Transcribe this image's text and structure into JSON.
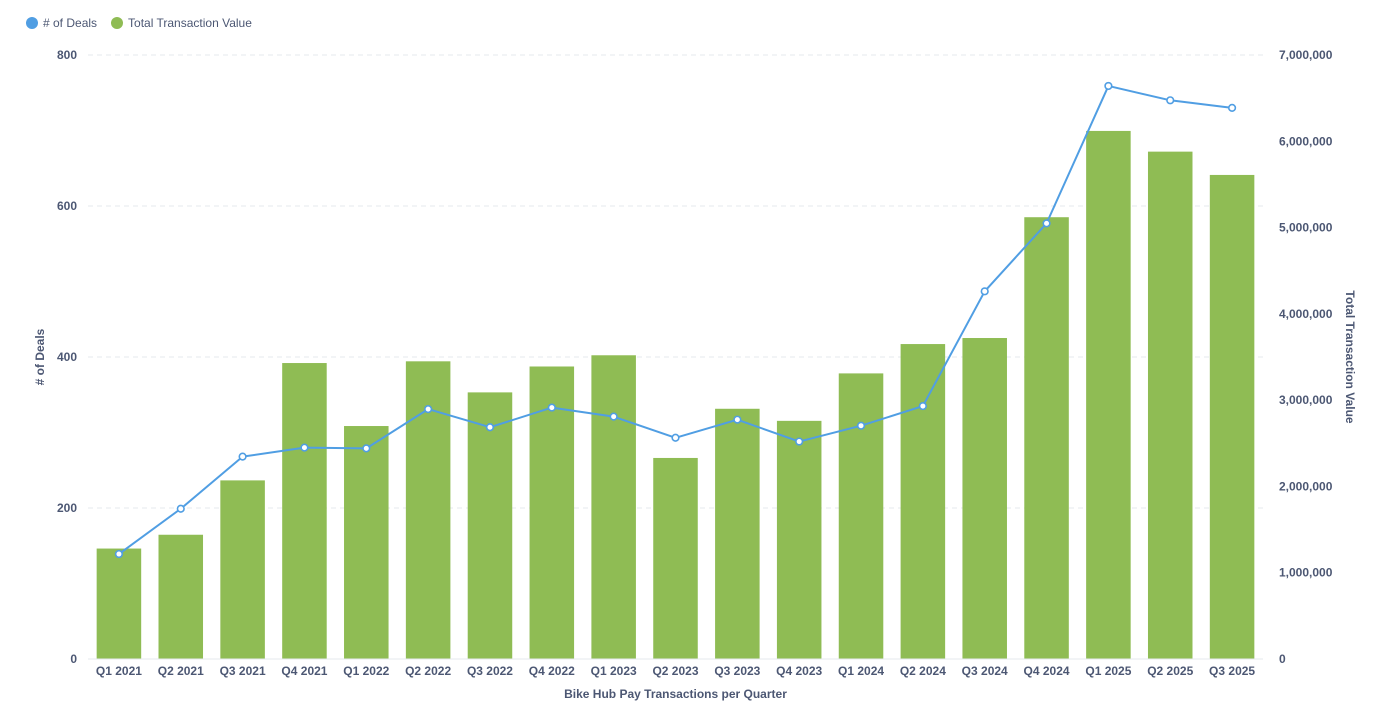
{
  "chart_data": {
    "type": "bar",
    "categories": [
      "Q1 2021",
      "Q2 2021",
      "Q3 2021",
      "Q4 2021",
      "Q1 2022",
      "Q2 2022",
      "Q3 2022",
      "Q4 2022",
      "Q1 2023",
      "Q2 2023",
      "Q3 2023",
      "Q4 2023",
      "Q1 2024",
      "Q2 2024",
      "Q3 2024",
      "Q4 2024",
      "Q1 2025",
      "Q2 2025",
      "Q3 2025"
    ],
    "series": [
      {
        "name": "Total Transaction Value",
        "type": "bar",
        "axis": "right",
        "color": "#8fbc54",
        "values": [
          1280000,
          1440000,
          2070000,
          3430000,
          2700000,
          3450000,
          3090000,
          3390000,
          3520000,
          2330000,
          2900000,
          2760000,
          3310000,
          3650000,
          3720000,
          5120000,
          6120000,
          5880000,
          5610000
        ]
      },
      {
        "name": "# of Deals",
        "type": "line",
        "axis": "left",
        "color": "#509ee3",
        "values": [
          139,
          199,
          268,
          280,
          279,
          331,
          307,
          333,
          321,
          293,
          317,
          288,
          309,
          335,
          487,
          577,
          759,
          740,
          730
        ]
      }
    ],
    "xlabel": "Bike Hub Pay Transactions per  Quarter",
    "ylabel_left": "# of Deals",
    "ylabel_right": "Total Transaction Value",
    "ylim_left": [
      0,
      800
    ],
    "ylim_right": [
      0,
      7000000
    ],
    "yticks_left": [
      "0",
      "200",
      "400",
      "600",
      "800"
    ],
    "yticks_right": [
      "0",
      "1,000,000",
      "2,000,000",
      "3,000,000",
      "4,000,000",
      "5,000,000",
      "6,000,000",
      "7,000,000"
    ],
    "grid": true,
    "legend": "top-left"
  }
}
